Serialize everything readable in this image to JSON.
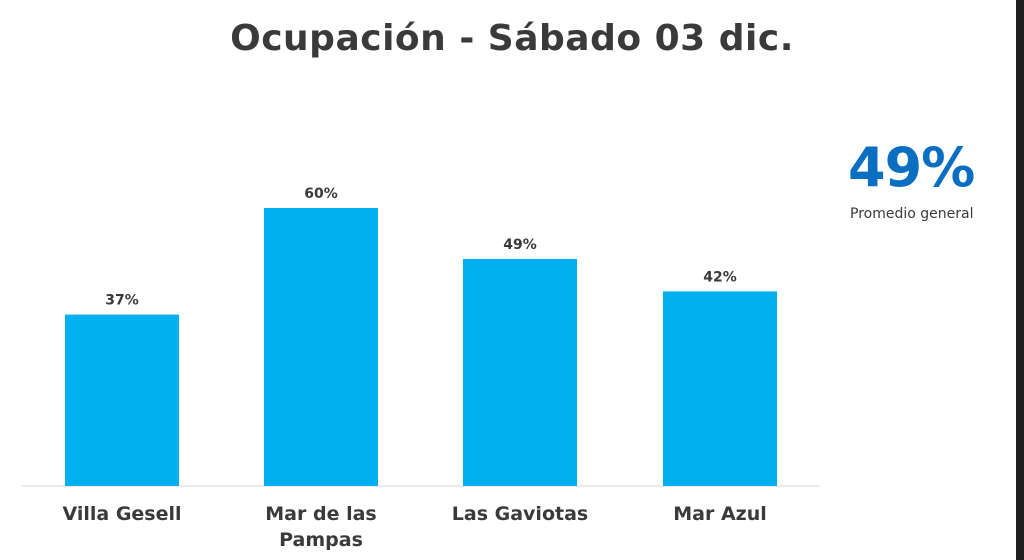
{
  "kpi": {
    "value": "49%",
    "label": "Promedio general"
  },
  "colors": {
    "bar": "#00b0f0",
    "kpi": "#0b6fc1",
    "text": "#3a3a3a",
    "axis": "#d9d9d9"
  },
  "chart_data": {
    "type": "bar",
    "title": "Ocupación - Sábado 03 dic.",
    "xlabel": "",
    "ylabel": "",
    "ylim": [
      0,
      60
    ],
    "grid": false,
    "categories": [
      "Villa Gesell",
      "Mar de las Pampas",
      "Las Gaviotas",
      "Mar Azul"
    ],
    "values": [
      37,
      60,
      49,
      42
    ],
    "value_labels": [
      "37%",
      "60%",
      "49%",
      "42%"
    ],
    "category_lines": [
      [
        "Villa Gesell"
      ],
      [
        "Mar de las",
        "Pampas"
      ],
      [
        "Las Gaviotas"
      ],
      [
        "Mar Azul"
      ]
    ]
  }
}
